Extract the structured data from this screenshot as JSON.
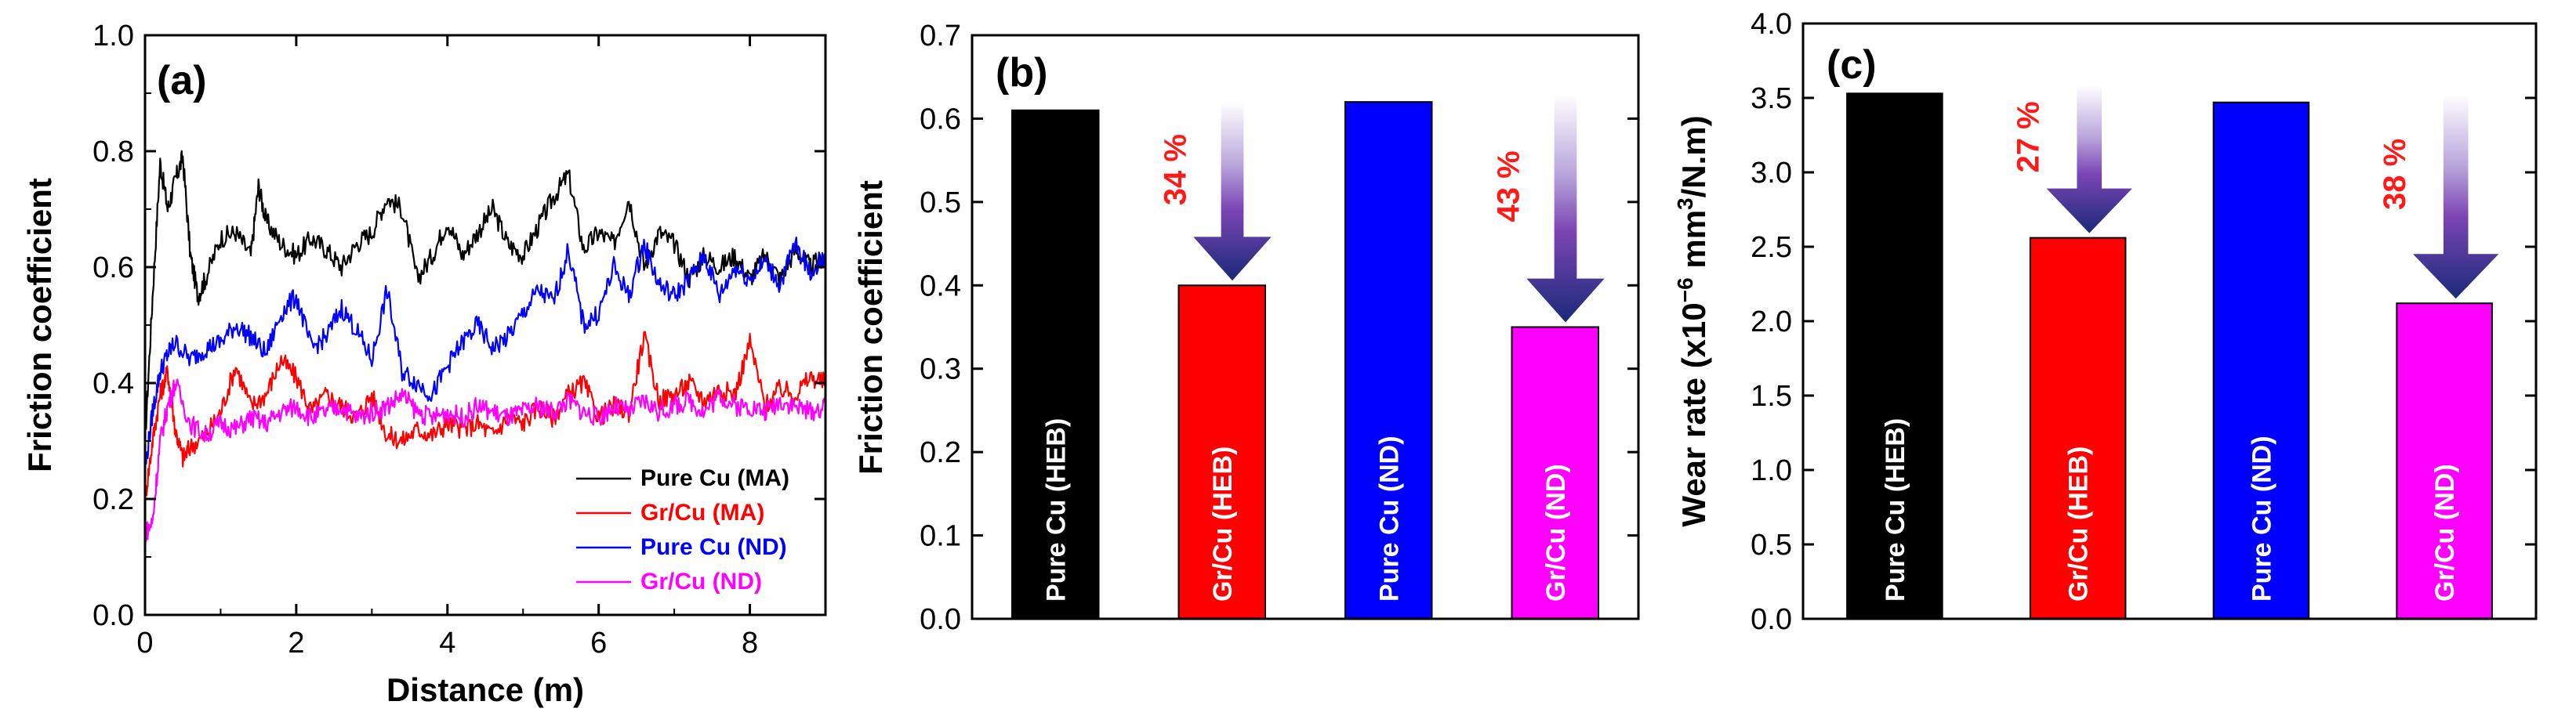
{
  "chart_data": [
    {
      "panel": "(a)",
      "type": "line",
      "xlabel": "Distance (m)",
      "ylabel": "Friction coefficient",
      "xlim": [
        0,
        9
      ],
      "ylim": [
        0.0,
        1.0
      ],
      "xticks": [
        "0",
        "2",
        "4",
        "6",
        "8"
      ],
      "yticks": [
        "0.0",
        "0.2",
        "0.4",
        "0.6",
        "0.8",
        "1.0"
      ],
      "legend_position": "bottom-right",
      "series": [
        {
          "name": "Pure Cu (MA)",
          "color": "#000000",
          "x": [
            0,
            0.1,
            0.2,
            0.3,
            0.4,
            0.5,
            0.6,
            0.7,
            0.8,
            1.0,
            1.2,
            1.4,
            1.5,
            1.6,
            1.8,
            2.0,
            2.2,
            2.4,
            2.6,
            2.8,
            3.0,
            3.2,
            3.4,
            3.6,
            3.8,
            4.0,
            4.2,
            4.4,
            4.6,
            4.8,
            5.0,
            5.2,
            5.4,
            5.6,
            5.8,
            6.0,
            6.2,
            6.4,
            6.6,
            6.8,
            7.0,
            7.2,
            7.4,
            7.6,
            7.8,
            8.0,
            8.2,
            8.4,
            8.6,
            8.8,
            9.0
          ],
          "y": [
            0.3,
            0.55,
            0.78,
            0.7,
            0.75,
            0.79,
            0.62,
            0.55,
            0.58,
            0.65,
            0.66,
            0.62,
            0.74,
            0.68,
            0.64,
            0.62,
            0.65,
            0.63,
            0.6,
            0.64,
            0.66,
            0.72,
            0.7,
            0.58,
            0.62,
            0.68,
            0.62,
            0.66,
            0.7,
            0.64,
            0.62,
            0.67,
            0.72,
            0.76,
            0.63,
            0.66,
            0.64,
            0.72,
            0.6,
            0.66,
            0.64,
            0.58,
            0.62,
            0.6,
            0.62,
            0.58,
            0.62,
            0.58,
            0.63,
            0.6,
            0.62
          ]
        },
        {
          "name": "Gr/Cu (MA)",
          "color": "#ff0000",
          "x": [
            0,
            0.1,
            0.2,
            0.3,
            0.4,
            0.5,
            0.6,
            0.8,
            1.0,
            1.2,
            1.4,
            1.6,
            1.8,
            2.0,
            2.2,
            2.4,
            2.6,
            2.8,
            3.0,
            3.2,
            3.4,
            3.6,
            3.8,
            4.0,
            4.2,
            4.4,
            4.6,
            4.8,
            5.0,
            5.2,
            5.4,
            5.6,
            5.8,
            6.0,
            6.2,
            6.4,
            6.6,
            6.8,
            7.0,
            7.2,
            7.4,
            7.6,
            7.8,
            8.0,
            8.2,
            8.4,
            8.6,
            8.8,
            9.0
          ],
          "y": [
            0.2,
            0.3,
            0.38,
            0.42,
            0.32,
            0.27,
            0.29,
            0.31,
            0.35,
            0.43,
            0.36,
            0.38,
            0.44,
            0.41,
            0.35,
            0.38,
            0.36,
            0.34,
            0.38,
            0.31,
            0.3,
            0.32,
            0.31,
            0.33,
            0.32,
            0.33,
            0.31,
            0.34,
            0.33,
            0.36,
            0.34,
            0.38,
            0.4,
            0.34,
            0.36,
            0.35,
            0.48,
            0.37,
            0.38,
            0.4,
            0.37,
            0.39,
            0.38,
            0.47,
            0.36,
            0.39,
            0.38,
            0.41,
            0.4
          ]
        },
        {
          "name": "Pure Cu (ND)",
          "color": "#0000ff",
          "x": [
            0,
            0.1,
            0.2,
            0.3,
            0.4,
            0.6,
            0.8,
            1.0,
            1.2,
            1.4,
            1.6,
            1.8,
            2.0,
            2.2,
            2.4,
            2.6,
            2.8,
            3.0,
            3.2,
            3.4,
            3.6,
            3.8,
            4.0,
            4.2,
            4.4,
            4.6,
            4.8,
            5.0,
            5.2,
            5.4,
            5.6,
            5.8,
            6.0,
            6.2,
            6.4,
            6.6,
            6.8,
            7.0,
            7.2,
            7.4,
            7.6,
            7.8,
            8.0,
            8.2,
            8.4,
            8.6,
            8.8,
            9.0
          ],
          "y": [
            0.25,
            0.35,
            0.42,
            0.45,
            0.47,
            0.44,
            0.46,
            0.47,
            0.5,
            0.48,
            0.45,
            0.52,
            0.55,
            0.46,
            0.48,
            0.53,
            0.49,
            0.44,
            0.56,
            0.42,
            0.4,
            0.38,
            0.43,
            0.47,
            0.5,
            0.46,
            0.48,
            0.52,
            0.56,
            0.54,
            0.63,
            0.5,
            0.52,
            0.6,
            0.55,
            0.64,
            0.57,
            0.55,
            0.58,
            0.62,
            0.55,
            0.6,
            0.58,
            0.61,
            0.57,
            0.64,
            0.59,
            0.62
          ]
        },
        {
          "name": "Gr/Cu (ND)",
          "color": "#ff00ff",
          "x": [
            0,
            0.1,
            0.2,
            0.3,
            0.4,
            0.6,
            0.8,
            1.0,
            1.2,
            1.4,
            1.6,
            1.8,
            2.0,
            2.2,
            2.4,
            2.6,
            2.8,
            3.0,
            3.2,
            3.4,
            3.6,
            3.8,
            4.0,
            4.2,
            4.4,
            4.6,
            4.8,
            5.0,
            5.2,
            5.4,
            5.6,
            5.8,
            6.0,
            6.2,
            6.4,
            6.6,
            6.8,
            7.0,
            7.2,
            7.4,
            7.6,
            7.8,
            8.0,
            8.2,
            8.4,
            8.6,
            8.8,
            9.0
          ],
          "y": [
            0.14,
            0.16,
            0.3,
            0.36,
            0.4,
            0.33,
            0.31,
            0.33,
            0.32,
            0.34,
            0.33,
            0.35,
            0.36,
            0.34,
            0.35,
            0.36,
            0.34,
            0.35,
            0.36,
            0.38,
            0.35,
            0.34,
            0.35,
            0.34,
            0.36,
            0.35,
            0.34,
            0.35,
            0.36,
            0.35,
            0.37,
            0.35,
            0.34,
            0.36,
            0.35,
            0.37,
            0.35,
            0.36,
            0.37,
            0.35,
            0.38,
            0.36,
            0.36,
            0.35,
            0.37,
            0.36,
            0.35,
            0.36
          ]
        }
      ]
    },
    {
      "panel": "(b)",
      "type": "bar",
      "xlabel": "",
      "ylabel": "Friction coefficient",
      "ylim": [
        0.0,
        0.7
      ],
      "yticks": [
        "0.0",
        "0.1",
        "0.2",
        "0.3",
        "0.4",
        "0.5",
        "0.6",
        "0.7"
      ],
      "categories": [
        "Pure Cu (HEB)",
        "Gr/Cu (HEB)",
        "Pure Cu (ND)",
        "Gr/Cu (ND)"
      ],
      "values": [
        0.61,
        0.4,
        0.62,
        0.35
      ],
      "colors": [
        "#000000",
        "#ff0000",
        "#0000ff",
        "#ff00ff"
      ],
      "annotations": [
        {
          "text": "34 %",
          "from": 0.61,
          "to": 0.4,
          "bar": 1
        },
        {
          "text": "43 %",
          "from": 0.62,
          "to": 0.35,
          "bar": 3
        }
      ]
    },
    {
      "panel": "(c)",
      "type": "bar",
      "xlabel": "",
      "ylabel_prefix": "Wear rate (x10",
      "ylabel_sup1": "−6",
      "ylabel_mid": " mm",
      "ylabel_sup2": "3",
      "ylabel_suffix": "/N.m)",
      "ylim": [
        0.0,
        4.0
      ],
      "yticks": [
        "0.0",
        "0.5",
        "1.0",
        "1.5",
        "2.0",
        "2.5",
        "3.0",
        "3.5",
        "4.0"
      ],
      "categories": [
        "Pure Cu (HEB)",
        "Gr/Cu (HEB)",
        "Pure Cu (ND)",
        "Gr/Cu (ND)"
      ],
      "values": [
        3.53,
        2.56,
        3.47,
        2.12
      ],
      "colors": [
        "#000000",
        "#ff0000",
        "#0000ff",
        "#ff00ff"
      ],
      "annotations": [
        {
          "text": "27 %",
          "from": 3.53,
          "to": 2.56,
          "bar": 1
        },
        {
          "text": "38 %",
          "from": 3.47,
          "to": 2.12,
          "bar": 3
        }
      ]
    }
  ]
}
